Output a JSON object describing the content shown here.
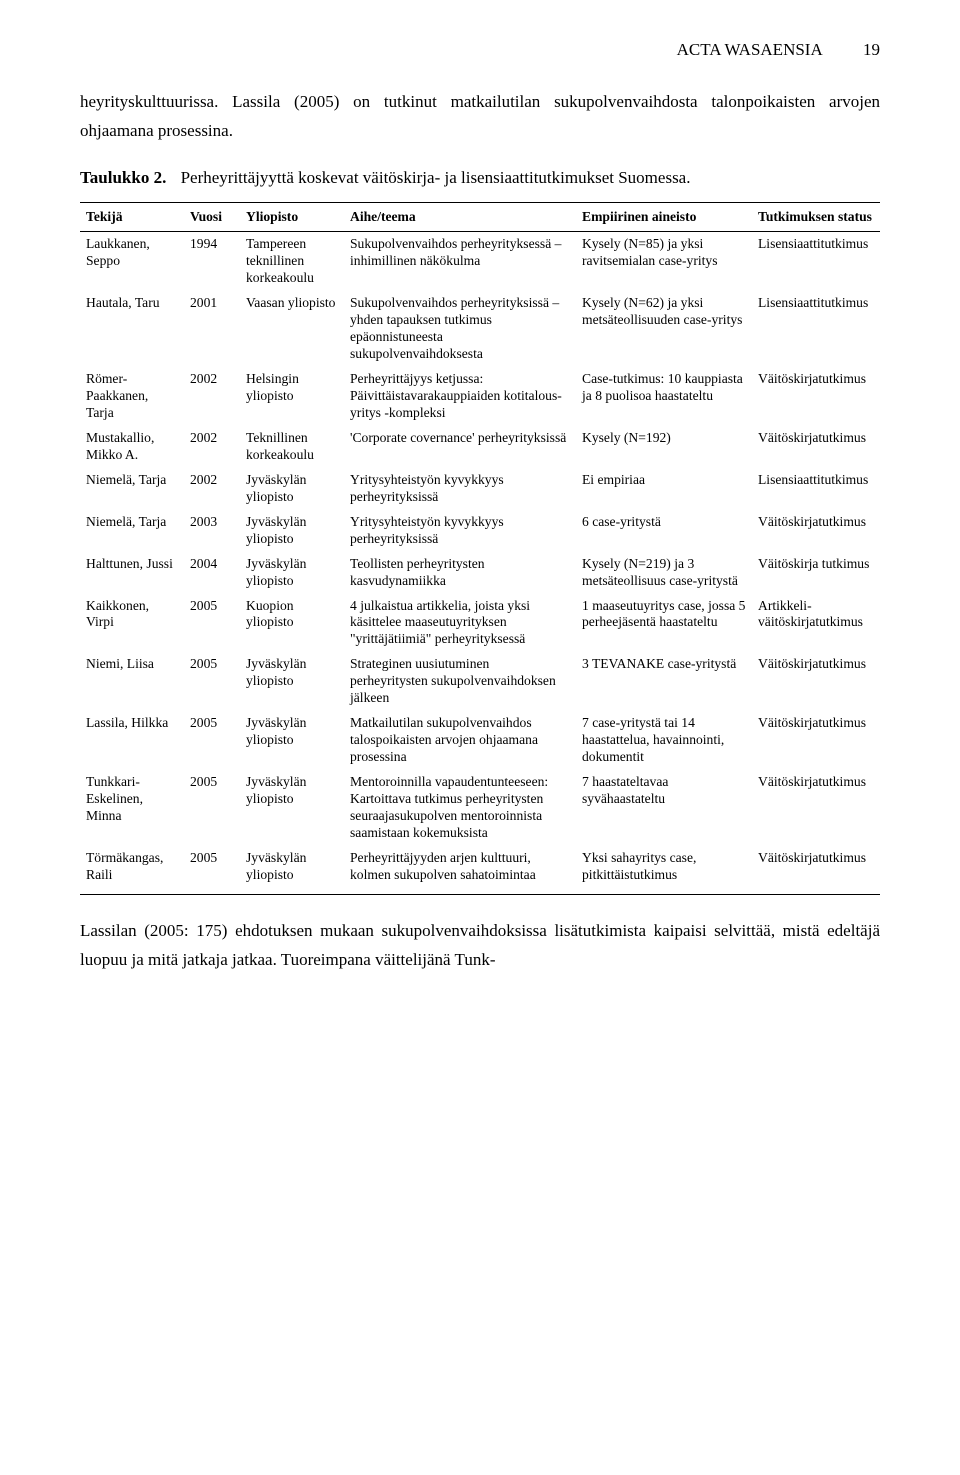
{
  "header": {
    "title": "ACTA WASAENSIA",
    "page_number": "19"
  },
  "intro_paragraph": "heyrityskulttuurissa. Lassila (2005) on tutkinut matkailutilan sukupolvenvaihdosta talonpoikaisten arvojen ohjaamana prosessina.",
  "table_caption": {
    "label": "Taulukko 2.",
    "text": "Perheyrittäjyyttä koskevat väitöskirja- ja lisensiaattitutkimukset Suomessa."
  },
  "columns": [
    "Tekijä",
    "Vuosi",
    "Yliopisto",
    "Aihe/teema",
    "Empiirinen aineisto",
    "Tutkimuksen status"
  ],
  "rows": [
    {
      "author": "Laukkanen, Seppo",
      "year": "1994",
      "univ": "Tampereen teknillinen korkeakoulu",
      "topic": "Sukupolvenvaihdos perheyrityksessä – inhimillinen näkökulma",
      "emp": "Kysely (N=85) ja yksi ravitsemialan case-yritys",
      "status": "Lisensiaattitutkimus"
    },
    {
      "author": "Hautala, Taru",
      "year": "2001",
      "univ": "Vaasan yliopisto",
      "topic": "Sukupolvenvaihdos perheyrityksissä – yhden tapauksen tutkimus epäonnistuneesta sukupolvenvaihdoksesta",
      "emp": "Kysely (N=62) ja yksi metsäteollisuuden case-yritys",
      "status": "Lisensiaattitutkimus"
    },
    {
      "author": "Römer-Paakkanen, Tarja",
      "year": "2002",
      "univ": "Helsingin yliopisto",
      "topic": "Perheyrittäjyys ketjussa: Päivittäistavarakauppiaiden kotitalous-yritys -kompleksi",
      "emp": "Case-tutkimus: 10 kauppiasta ja 8 puolisoa haastateltu",
      "status": "Väitöskirjatutkimus"
    },
    {
      "author": "Mustakallio, Mikko A.",
      "year": "2002",
      "univ": "Teknillinen korkeakoulu",
      "topic": "'Corporate covernance' perheyrityksissä",
      "emp": "Kysely (N=192)",
      "status": "Väitöskirjatutkimus"
    },
    {
      "author": "Niemelä, Tarja",
      "year": "2002",
      "univ": "Jyväskylän yliopisto",
      "topic": "Yritysyhteistyön kyvykkyys perheyrityksissä",
      "emp": "Ei empiriaa",
      "status": "Lisensiaattitutkimus"
    },
    {
      "author": "Niemelä, Tarja",
      "year": "2003",
      "univ": "Jyväskylän yliopisto",
      "topic": "Yritysyhteistyön kyvykkyys perheyrityksissä",
      "emp": "6 case-yritystä",
      "status": "Väitöskirjatutkimus"
    },
    {
      "author": "Halttunen, Jussi",
      "year": "2004",
      "univ": "Jyväskylän yliopisto",
      "topic": "Teollisten perheyritysten kasvudynamiikka",
      "emp": "Kysely (N=219) ja 3 metsäteollisuus case-yritystä",
      "status": "Väitöskirja tutkimus"
    },
    {
      "author": "Kaikkonen, Virpi",
      "year": "2005",
      "univ": "Kuopion yliopisto",
      "topic": "4 julkaistua artikkelia, joista yksi käsittelee maaseutuyrityksen \"yrittäjätiimiä\" perheyrityksessä",
      "emp": "1 maaseutuyritys case, jossa 5 perheejäsentä haastateltu",
      "status": "Artikkeli-väitöskirjatutkimus"
    },
    {
      "author": "Niemi, Liisa",
      "year": "2005",
      "univ": "Jyväskylän yliopisto",
      "topic": "Strateginen uusiutuminen perheyritysten sukupolvenvaihdoksen jälkeen",
      "emp": "3 TEVANAKE case-yritystä",
      "status": "Väitöskirjatutkimus"
    },
    {
      "author": "Lassila, Hilkka",
      "year": "2005",
      "univ": "Jyväskylän yliopisto",
      "topic": "Matkailutilan sukupolvenvaihdos talospoikaisten arvojen ohjaamana prosessina",
      "emp": "7 case-yritystä tai 14 haastattelua, havainnointi, dokumentit",
      "status": "Väitöskirjatutkimus"
    },
    {
      "author": "Tunkkari-Eskelinen, Minna",
      "year": "2005",
      "univ": "Jyväskylän yliopisto",
      "topic": "Mentoroinnilla vapaudentunteeseen: Kartoittava tutkimus perheyritysten seuraajasukupolven mentoroinnista saamistaan kokemuksista",
      "emp": "7 haastateltavaa syvähaastateltu",
      "status": "Väitöskirjatutkimus"
    },
    {
      "author": "Törmäkangas, Raili",
      "year": "2005",
      "univ": "Jyväskylän yliopisto",
      "topic": "Perheyrittäjyyden arjen kulttuuri, kolmen sukupolven sahatoimintaa",
      "emp": "Yksi sahayritys case, pitkittäistutkimus",
      "status": "Väitöskirjatutkimus"
    }
  ],
  "footer_paragraph": "Lassilan (2005: 175) ehdotuksen mukaan sukupolvenvaihdoksissa lisätutkimista kaipaisi selvittää, mistä edeltäjä luopuu ja mitä jatkaja jatkaa. Tuoreimpana väittelijänä Tunk-"
}
